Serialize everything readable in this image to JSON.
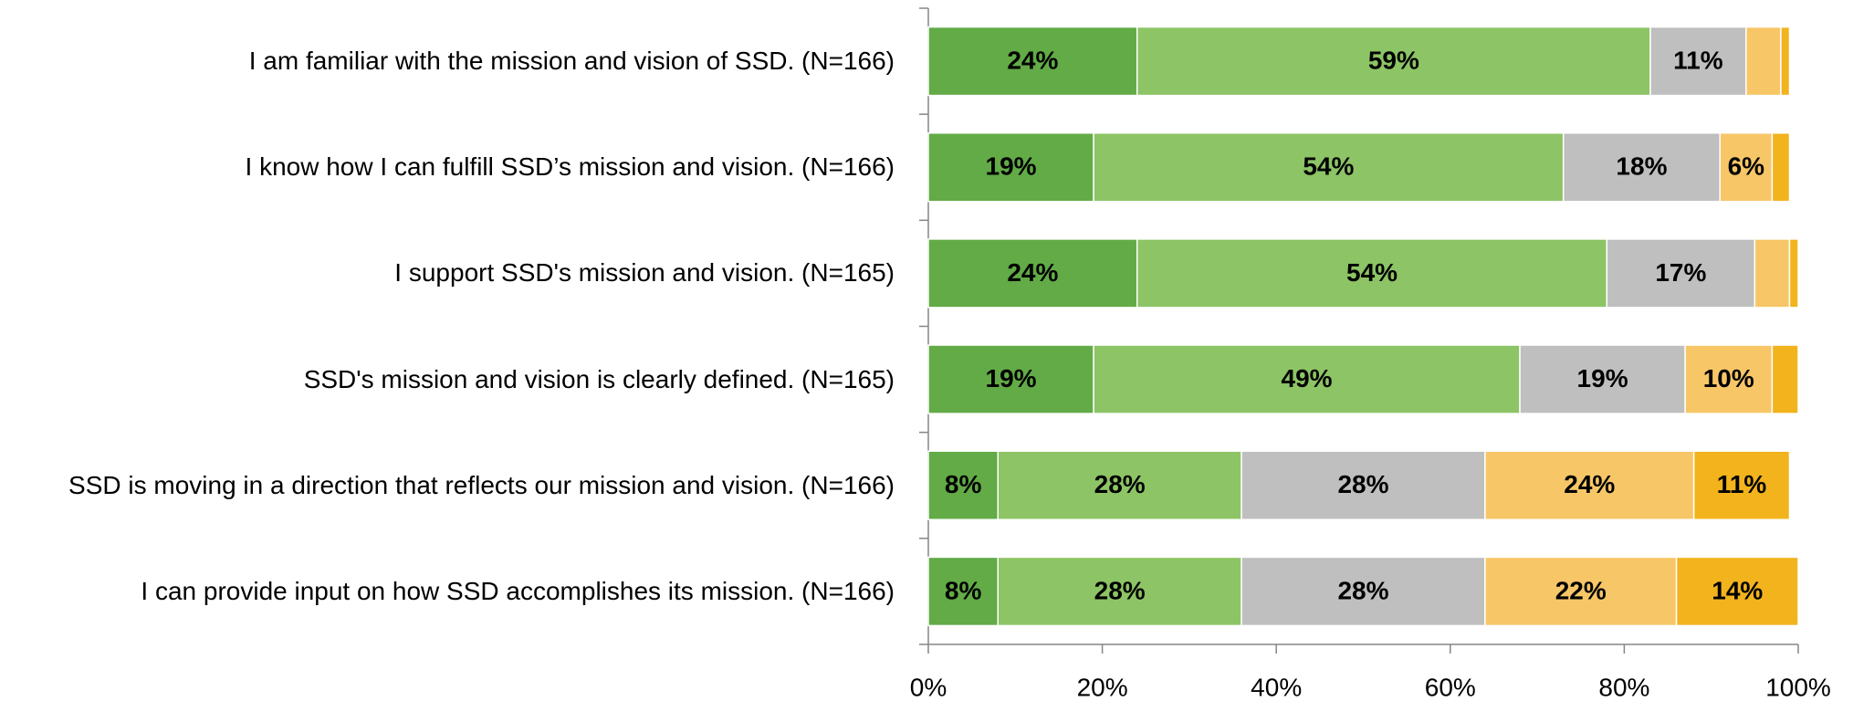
{
  "chart_data": {
    "type": "stacked-bar-horizontal",
    "categories": [
      "I am familiar with the mission and vision of SSD. (N=166)",
      "I know how I can fulfill SSD’s mission and vision. (N=166)",
      "I support SSD's mission and vision. (N=165)",
      "SSD's mission and vision is clearly defined. (N=165)",
      "SSD is moving in a direction that reflects our mission and vision. (N=166)",
      "I can provide input on how SSD accomplishes its mission. (N=166)"
    ],
    "series": [
      {
        "color": "#62ab47",
        "values": [
          24,
          19,
          24,
          19,
          8,
          8
        ],
        "value_labels": [
          "24%",
          "19%",
          "24%",
          "19%",
          "8%",
          "8%"
        ]
      },
      {
        "color": "#8dc465",
        "values": [
          59,
          54,
          54,
          49,
          28,
          28
        ],
        "value_labels": [
          "59%",
          "54%",
          "54%",
          "49%",
          "28%",
          "28%"
        ]
      },
      {
        "color": "#bfbfbf",
        "values": [
          11,
          18,
          17,
          19,
          28,
          28
        ],
        "value_labels": [
          "11%",
          "18%",
          "17%",
          "19%",
          "28%",
          "28%"
        ]
      },
      {
        "color": "#f7c667",
        "values": [
          4,
          6,
          4,
          10,
          24,
          22
        ],
        "value_labels": [
          null,
          "6%",
          null,
          "10%",
          "24%",
          "22%"
        ]
      },
      {
        "color": "#f2b31c",
        "values": [
          1,
          2,
          1,
          3,
          11,
          14
        ],
        "value_labels": [
          null,
          null,
          null,
          null,
          "11%",
          "14%"
        ]
      }
    ],
    "xlim": [
      0,
      100
    ],
    "xticks": [
      {
        "value": 0,
        "label": "0%"
      },
      {
        "value": 20,
        "label": "20%"
      },
      {
        "value": 40,
        "label": "40%"
      },
      {
        "value": 60,
        "label": "60%"
      },
      {
        "value": 80,
        "label": "80%"
      },
      {
        "value": 100,
        "label": "100%"
      }
    ]
  }
}
